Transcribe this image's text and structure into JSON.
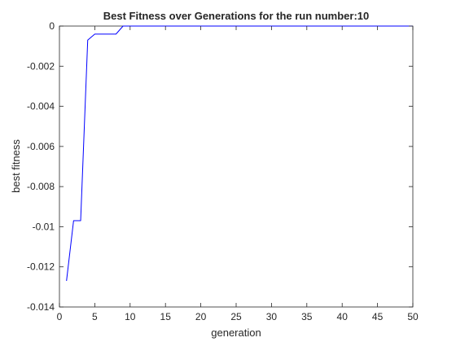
{
  "chart_data": {
    "type": "line",
    "title": "Best Fitness over Generations for the run number:10",
    "xlabel": "generation",
    "ylabel": "best fitness",
    "xlim": [
      0,
      50
    ],
    "ylim": [
      -0.014,
      0
    ],
    "xticks": [
      0,
      5,
      10,
      15,
      20,
      25,
      30,
      35,
      40,
      45,
      50
    ],
    "yticks": [
      -0.014,
      -0.012,
      -0.01,
      -0.008,
      -0.006,
      -0.004,
      -0.002,
      0
    ],
    "xtick_labels": [
      "0",
      "5",
      "10",
      "15",
      "20",
      "25",
      "30",
      "35",
      "40",
      "45",
      "50"
    ],
    "ytick_labels": [
      "-0.014",
      "-0.012",
      "-0.01",
      "-0.008",
      "-0.006",
      "-0.004",
      "-0.002",
      "0"
    ],
    "grid": false,
    "box": true,
    "series": [
      {
        "color": "#0000ff",
        "x": [
          1,
          2,
          3,
          4,
          5,
          6,
          7,
          8,
          9,
          10,
          11,
          12,
          13,
          14,
          15,
          16,
          17,
          18,
          19,
          20,
          21,
          22,
          23,
          24,
          25,
          26,
          27,
          28,
          29,
          30,
          31,
          32,
          33,
          34,
          35,
          36,
          37,
          38,
          39,
          40,
          41,
          42,
          43,
          44,
          45,
          46,
          47,
          48,
          49,
          50
        ],
        "values": [
          -0.0127,
          -0.0097,
          -0.0097,
          -0.0007,
          -0.0004,
          -0.0004,
          -0.0004,
          -0.0004,
          0.0,
          0.0,
          0.0,
          0.0,
          0.0,
          0.0,
          0.0,
          0.0,
          0.0,
          0.0,
          0.0,
          0.0,
          0.0,
          0.0,
          0.0,
          0.0,
          0.0,
          0.0,
          0.0,
          0.0,
          0.0,
          0.0,
          0.0,
          0.0,
          0.0,
          0.0,
          0.0,
          0.0,
          0.0,
          0.0,
          0.0,
          0.0,
          0.0,
          0.0,
          0.0,
          0.0,
          0.0,
          0.0,
          0.0,
          0.0,
          0.0,
          0.0
        ]
      }
    ]
  }
}
